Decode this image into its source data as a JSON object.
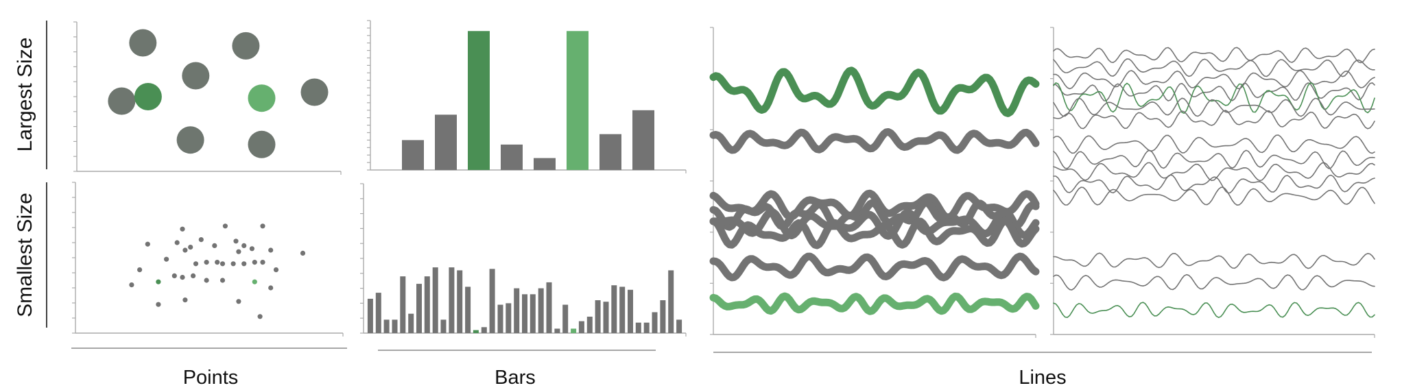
{
  "labels": {
    "row_top": "Largest Size",
    "row_bottom": "Smallest Size",
    "col_points": "Points",
    "col_bars": "Bars",
    "col_lines": "Lines"
  },
  "colors": {
    "gray": "#737373",
    "gray_circle": "#6e766f",
    "green_dark": "#4a8f54",
    "green_light": "#66b06f",
    "axis": "#aaaaaa"
  },
  "chart_data": [
    {
      "id": "points-largest",
      "type": "scatter",
      "xlim": [
        0,
        100
      ],
      "ylim": [
        0,
        100
      ],
      "points": [
        {
          "x": 25,
          "y": 86,
          "color": "gray"
        },
        {
          "x": 64,
          "y": 84,
          "color": "gray"
        },
        {
          "x": 45,
          "y": 64,
          "color": "gray"
        },
        {
          "x": 17,
          "y": 47,
          "color": "gray"
        },
        {
          "x": 27,
          "y": 50,
          "color": "green_dark"
        },
        {
          "x": 70,
          "y": 49,
          "color": "green_light"
        },
        {
          "x": 90,
          "y": 53,
          "color": "gray"
        },
        {
          "x": 43,
          "y": 21,
          "color": "gray"
        },
        {
          "x": 70,
          "y": 18,
          "color": "gray"
        }
      ]
    },
    {
      "id": "points-smallest",
      "type": "scatter",
      "xlim": [
        0,
        100
      ],
      "ylim": [
        0,
        100
      ],
      "points": [
        {
          "x": 40,
          "y": 69,
          "color": "gray"
        },
        {
          "x": 56,
          "y": 71,
          "color": "gray"
        },
        {
          "x": 70,
          "y": 71,
          "color": "gray"
        },
        {
          "x": 27,
          "y": 59,
          "color": "gray"
        },
        {
          "x": 38,
          "y": 60,
          "color": "gray"
        },
        {
          "x": 47,
          "y": 62,
          "color": "gray"
        },
        {
          "x": 60,
          "y": 61,
          "color": "gray"
        },
        {
          "x": 43,
          "y": 57,
          "color": "gray"
        },
        {
          "x": 41,
          "y": 55,
          "color": "gray"
        },
        {
          "x": 52,
          "y": 58,
          "color": "gray"
        },
        {
          "x": 63,
          "y": 58,
          "color": "gray"
        },
        {
          "x": 66,
          "y": 56,
          "color": "gray"
        },
        {
          "x": 73,
          "y": 55,
          "color": "gray"
        },
        {
          "x": 61,
          "y": 54,
          "color": "gray"
        },
        {
          "x": 85,
          "y": 53,
          "color": "gray"
        },
        {
          "x": 34,
          "y": 49,
          "color": "gray"
        },
        {
          "x": 45,
          "y": 46,
          "color": "gray"
        },
        {
          "x": 49,
          "y": 47,
          "color": "gray"
        },
        {
          "x": 53,
          "y": 47,
          "color": "gray"
        },
        {
          "x": 55,
          "y": 46,
          "color": "gray"
        },
        {
          "x": 59,
          "y": 46,
          "color": "gray"
        },
        {
          "x": 63,
          "y": 46,
          "color": "gray"
        },
        {
          "x": 67,
          "y": 47,
          "color": "gray"
        },
        {
          "x": 70,
          "y": 47,
          "color": "gray"
        },
        {
          "x": 75,
          "y": 42,
          "color": "gray"
        },
        {
          "x": 24,
          "y": 42,
          "color": "gray"
        },
        {
          "x": 37,
          "y": 38,
          "color": "gray"
        },
        {
          "x": 40,
          "y": 37,
          "color": "gray"
        },
        {
          "x": 44,
          "y": 38,
          "color": "gray"
        },
        {
          "x": 49,
          "y": 35,
          "color": "gray"
        },
        {
          "x": 55,
          "y": 35,
          "color": "gray"
        },
        {
          "x": 73,
          "y": 30,
          "color": "gray"
        },
        {
          "x": 21,
          "y": 32,
          "color": "gray"
        },
        {
          "x": 31,
          "y": 34,
          "color": "green_dark"
        },
        {
          "x": 67,
          "y": 34,
          "color": "green_light"
        },
        {
          "x": 41,
          "y": 22,
          "color": "gray"
        },
        {
          "x": 31,
          "y": 19,
          "color": "gray"
        },
        {
          "x": 61,
          "y": 21,
          "color": "gray"
        },
        {
          "x": 69,
          "y": 11,
          "color": "gray"
        }
      ]
    },
    {
      "id": "bars-largest",
      "type": "bar",
      "ylim": [
        0,
        100
      ],
      "values": [
        20,
        37,
        93,
        17,
        8,
        93,
        24,
        40
      ],
      "colors": [
        "gray",
        "gray",
        "green_dark",
        "gray",
        "gray",
        "green_light",
        "gray",
        "gray"
      ]
    },
    {
      "id": "bars-smallest",
      "type": "bar",
      "ylim": [
        0,
        100
      ],
      "values": [
        23,
        27,
        9,
        9,
        38,
        13,
        33,
        38,
        44,
        9,
        44,
        42,
        31,
        2,
        4,
        43,
        19,
        20,
        30,
        26,
        26,
        30,
        34,
        3,
        19,
        3,
        8,
        11,
        22,
        21,
        32,
        31,
        29,
        7,
        7,
        14,
        22,
        42,
        9
      ],
      "colors": [
        "gray",
        "gray",
        "gray",
        "gray",
        "gray",
        "gray",
        "gray",
        "gray",
        "gray",
        "gray",
        "gray",
        "gray",
        "gray",
        "green_dark",
        "gray",
        "gray",
        "gray",
        "gray",
        "gray",
        "gray",
        "gray",
        "gray",
        "gray",
        "gray",
        "gray",
        "green_light",
        "gray",
        "gray",
        "gray",
        "gray",
        "gray",
        "gray",
        "gray",
        "gray",
        "gray",
        "gray",
        "gray",
        "gray",
        "gray"
      ]
    },
    {
      "id": "lines-thick",
      "type": "line",
      "ylim": [
        0,
        100
      ],
      "series": [
        {
          "color": "green_dark",
          "base": 79,
          "amp": 7,
          "f1": 5.1,
          "f2": 9.3,
          "p1": 0.5,
          "p2": 1.7
        },
        {
          "color": "gray",
          "base": 63,
          "amp": 3,
          "f1": 7.2,
          "f2": 11.5,
          "p1": 2.1,
          "p2": 0.3
        },
        {
          "color": "gray",
          "base": 42,
          "amp": 4,
          "f1": 6.3,
          "f2": 10.1,
          "p1": 1.1,
          "p2": 2.4
        },
        {
          "color": "gray",
          "base": 39,
          "amp": 4,
          "f1": 5.7,
          "f2": 12.3,
          "p1": 3.0,
          "p2": 0.9
        },
        {
          "color": "gray",
          "base": 36,
          "amp": 4,
          "f1": 6.9,
          "f2": 9.7,
          "p1": 0.2,
          "p2": 2.9
        },
        {
          "color": "gray",
          "base": 33,
          "amp": 4,
          "f1": 7.7,
          "f2": 11.1,
          "p1": 1.8,
          "p2": 1.2
        },
        {
          "color": "gray",
          "base": 22,
          "amp": 3.5,
          "f1": 6.1,
          "f2": 10.7,
          "p1": 2.6,
          "p2": 0.6
        },
        {
          "color": "green_light",
          "base": 10,
          "amp": 2.5,
          "f1": 9.4,
          "f2": 13.2,
          "p1": 0.9,
          "p2": 2.2
        }
      ]
    },
    {
      "id": "lines-thin",
      "type": "line",
      "ylim": [
        0,
        100
      ],
      "series": [
        {
          "color": "gray",
          "base": 91,
          "amp": 2.5,
          "f1": 9.1,
          "f2": 14.2,
          "p1": 0.3,
          "p2": 1.1
        },
        {
          "color": "gray",
          "base": 87,
          "amp": 3,
          "f1": 8.3,
          "f2": 12.6,
          "p1": 1.7,
          "p2": 2.5
        },
        {
          "color": "gray",
          "base": 83,
          "amp": 3,
          "f1": 7.6,
          "f2": 13.3,
          "p1": 2.4,
          "p2": 0.4
        },
        {
          "color": "gray",
          "base": 79,
          "amp": 3,
          "f1": 10.2,
          "f2": 15.1,
          "p1": 0.8,
          "p2": 1.9
        },
        {
          "color": "green_dark",
          "base": 77,
          "amp": 5,
          "f1": 8.8,
          "f2": 13.9,
          "p1": 1.2,
          "p2": 0.7
        },
        {
          "color": "gray",
          "base": 74,
          "amp": 3,
          "f1": 9.5,
          "f2": 12.2,
          "p1": 2.9,
          "p2": 2.0
        },
        {
          "color": "gray",
          "base": 70,
          "amp": 3,
          "f1": 7.9,
          "f2": 14.6,
          "p1": 0.1,
          "p2": 2.8
        },
        {
          "color": "gray",
          "base": 62,
          "amp": 3,
          "f1": 8.6,
          "f2": 11.8,
          "p1": 1.5,
          "p2": 0.2
        },
        {
          "color": "gray",
          "base": 57,
          "amp": 3,
          "f1": 9.8,
          "f2": 13.4,
          "p1": 2.2,
          "p2": 1.4
        },
        {
          "color": "gray",
          "base": 53,
          "amp": 3,
          "f1": 7.3,
          "f2": 12.9,
          "p1": 0.6,
          "p2": 2.6
        },
        {
          "color": "gray",
          "base": 49,
          "amp": 3,
          "f1": 8.1,
          "f2": 14.0,
          "p1": 1.9,
          "p2": 0.8
        },
        {
          "color": "gray",
          "base": 45,
          "amp": 3,
          "f1": 9.2,
          "f2": 11.4,
          "p1": 2.7,
          "p2": 1.6
        },
        {
          "color": "gray",
          "base": 24,
          "amp": 2.5,
          "f1": 8.4,
          "f2": 13.1,
          "p1": 0.4,
          "p2": 2.3
        },
        {
          "color": "gray",
          "base": 17,
          "amp": 2.5,
          "f1": 9.7,
          "f2": 12.5,
          "p1": 1.3,
          "p2": 0.5
        },
        {
          "color": "green_dark",
          "base": 8,
          "amp": 2.5,
          "f1": 10.5,
          "f2": 14.8,
          "p1": 2.0,
          "p2": 1.0
        }
      ]
    }
  ]
}
